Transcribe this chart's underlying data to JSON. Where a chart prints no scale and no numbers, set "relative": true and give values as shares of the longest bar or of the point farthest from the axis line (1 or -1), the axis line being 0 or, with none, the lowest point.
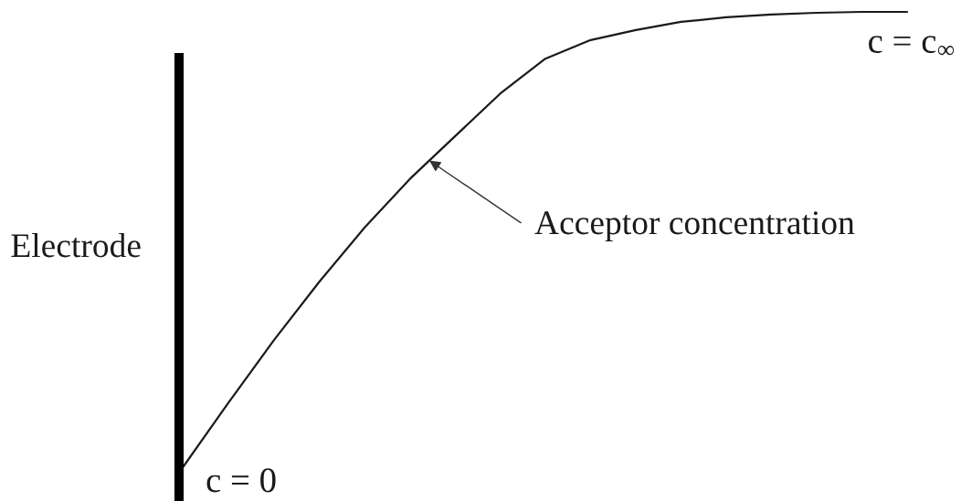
{
  "chart_data": {
    "type": "line",
    "relative": true,
    "categories": [
      null,
      null,
      null,
      null,
      null,
      null,
      null,
      null,
      null,
      null,
      null,
      null,
      null,
      null,
      null,
      null,
      null
    ],
    "values": [
      0,
      0.141,
      0.278,
      0.406,
      0.525,
      0.632,
      0.726,
      0.82,
      0.897,
      0.938,
      0.96,
      0.978,
      0.988,
      0.994,
      0.998,
      1.0,
      1.0
    ],
    "color": "#1a1a1a",
    "annotations": [
      "c = c$_{∞}$",
      "Acceptor concentration",
      "Electrode",
      "c = 0"
    ]
  }
}
